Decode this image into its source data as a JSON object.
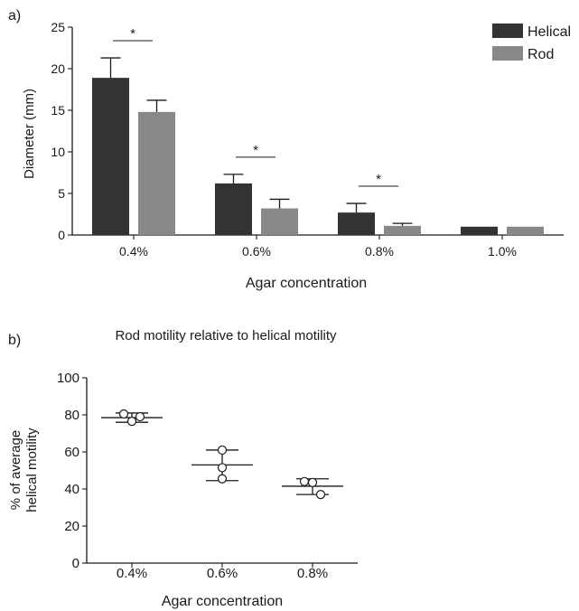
{
  "chart_data": [
    {
      "panel_label": "a)",
      "type": "bar",
      "categories": [
        "0.4%",
        "0.6%",
        "0.8%",
        "1.0%"
      ],
      "series": [
        {
          "name": "Helical",
          "color": "#333333",
          "values": [
            18.9,
            6.2,
            2.7,
            1.0
          ],
          "error": [
            2.4,
            1.1,
            1.1,
            0.0
          ]
        },
        {
          "name": "Rod",
          "color": "#888888",
          "values": [
            14.8,
            3.2,
            1.1,
            1.0
          ],
          "error": [
            1.4,
            1.1,
            0.3,
            0.0
          ]
        }
      ],
      "significance": [
        {
          "category": "0.4%",
          "marker": "*"
        },
        {
          "category": "0.6%",
          "marker": "*"
        },
        {
          "category": "0.8%",
          "marker": "*"
        }
      ],
      "title": "",
      "xlabel": "Agar concentration",
      "ylabel": "Diameter (mm)",
      "ylim": [
        0,
        25
      ],
      "yticks": [
        0,
        5,
        10,
        15,
        20,
        25
      ],
      "legend": "top-right"
    },
    {
      "panel_label": "b)",
      "type": "scatter",
      "title": "Rod motility relative to helical motility",
      "categories": [
        "0.4%",
        "0.6%",
        "0.8%"
      ],
      "points": [
        {
          "category": "0.4%",
          "values": [
            80.5,
            76.5,
            79.0
          ],
          "mean": 78.5,
          "range": [
            76.0,
            81.0
          ]
        },
        {
          "category": "0.6%",
          "values": [
            61.0,
            51.5,
            45.5
          ],
          "mean": 53.0,
          "range": [
            44.5,
            61.0
          ]
        },
        {
          "category": "0.8%",
          "values": [
            44.0,
            43.5,
            37.0
          ],
          "mean": 41.5,
          "range": [
            37.0,
            45.5
          ]
        }
      ],
      "xlabel": "Agar concentration",
      "ylabel": [
        "% of average",
        "helical motility"
      ],
      "ylim": [
        0,
        100
      ],
      "yticks": [
        0,
        20,
        40,
        60,
        80,
        100
      ]
    }
  ]
}
